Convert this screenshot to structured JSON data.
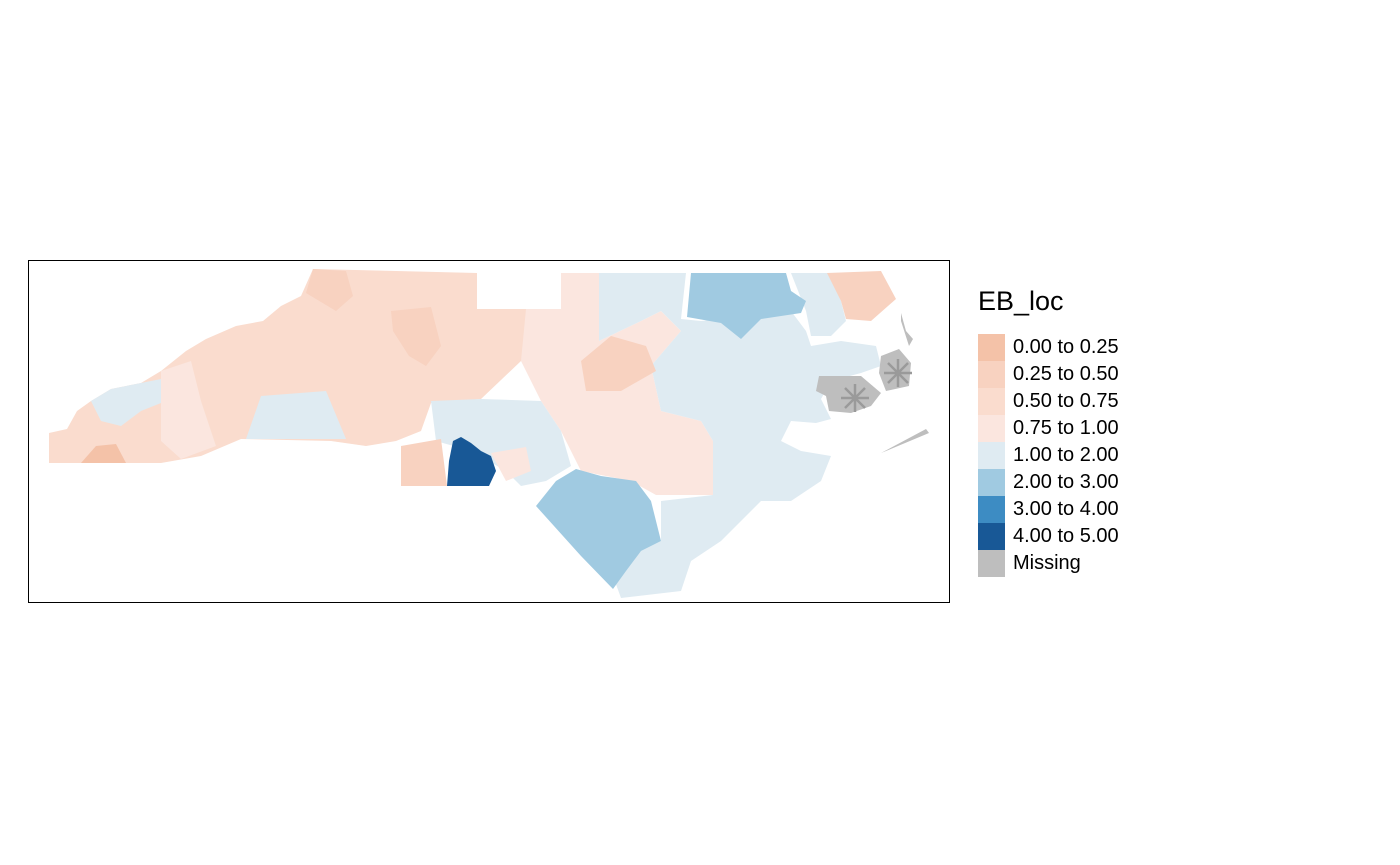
{
  "legend": {
    "title": "EB_loc",
    "items": [
      {
        "label": "0.00 to 0.25",
        "color": "#f4c2a8"
      },
      {
        "label": "0.25 to 0.50",
        "color": "#f8d2c0"
      },
      {
        "label": "0.50 to 0.75",
        "color": "#fadcce"
      },
      {
        "label": "0.75 to 1.00",
        "color": "#fbe6df"
      },
      {
        "label": "1.00 to 2.00",
        "color": "#dfebf2"
      },
      {
        "label": "2.00 to 3.00",
        "color": "#a0cae1"
      },
      {
        "label": "3.00 to 4.00",
        "color": "#3d8cc3"
      },
      {
        "label": "4.00 to 5.00",
        "color": "#185896"
      },
      {
        "label": "Missing",
        "color": "#bebebe"
      }
    ]
  },
  "map": {
    "missing_marker": "asterisk",
    "marker_color": "#9a9a9a"
  }
}
